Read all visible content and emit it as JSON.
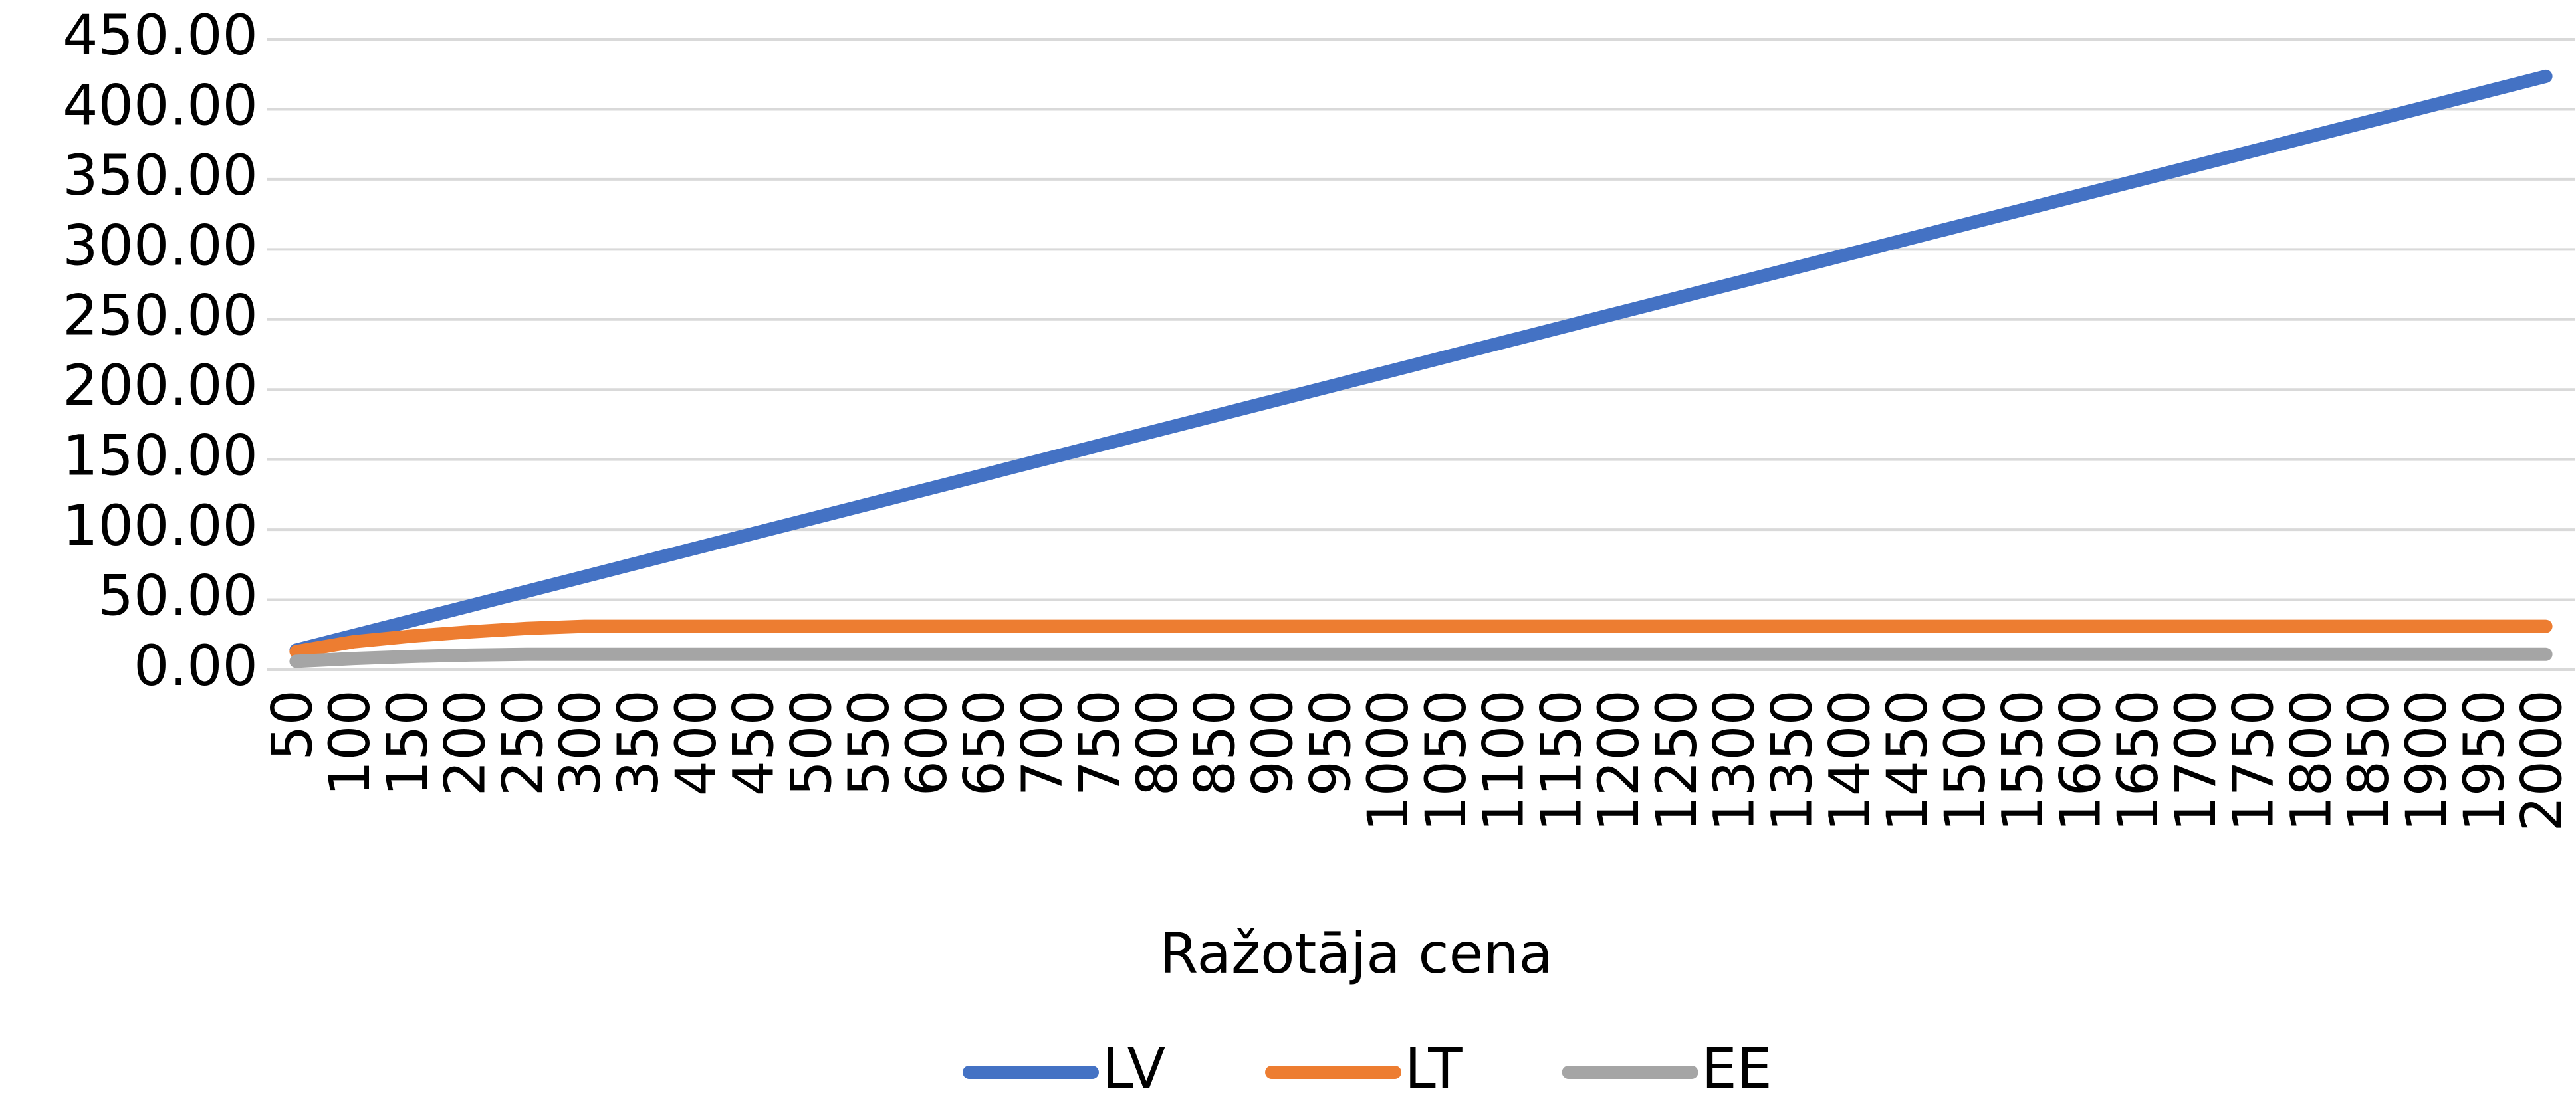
{
  "chart_data": {
    "type": "line",
    "x_label": "Ražotāja cena",
    "categories": [
      "50",
      "100",
      "150",
      "200",
      "250",
      "300",
      "350",
      "400",
      "450",
      "500",
      "550",
      "600",
      "650",
      "700",
      "750",
      "800",
      "850",
      "900",
      "950",
      "1000",
      "1050",
      "1100",
      "1150",
      "1200",
      "1250",
      "1300",
      "1350",
      "1400",
      "1450",
      "1500",
      "1550",
      "1600",
      "1650",
      "1700",
      "1750",
      "1800",
      "1850",
      "1900",
      "1950",
      "2000"
    ],
    "series": [
      {
        "name": "LV",
        "color": "#4472c4",
        "values": [
          14,
          24.5,
          35,
          45.5,
          56,
          66.5,
          77,
          87.5,
          98,
          108.5,
          119,
          129.5,
          140,
          150.5,
          161,
          171.5,
          182,
          192.5,
          203,
          213.5,
          224,
          234.5,
          245,
          255.5,
          266,
          276.5,
          287,
          297.5,
          308,
          318.5,
          329,
          339.5,
          350,
          360.5,
          371,
          381.5,
          392,
          402.5,
          413,
          423.5
        ]
      },
      {
        "name": "LT",
        "color": "#ed7d31",
        "values": [
          13,
          20,
          24,
          27,
          29.5,
          31,
          31,
          31,
          31,
          31,
          31,
          31,
          31,
          31,
          31,
          31,
          31,
          31,
          31,
          31,
          31,
          31,
          31,
          31,
          31,
          31,
          31,
          31,
          31,
          31,
          31,
          31,
          31,
          31,
          31,
          31,
          31,
          31,
          31,
          31
        ]
      },
      {
        "name": "EE",
        "color": "#a5a5a5",
        "values": [
          6,
          8,
          9.5,
          10.5,
          11,
          11,
          11,
          11,
          11,
          11,
          11,
          11,
          11,
          11,
          11,
          11,
          11,
          11,
          11,
          11,
          11,
          11,
          11,
          11,
          11,
          11,
          11,
          11,
          11,
          11,
          11,
          11,
          11,
          11,
          11,
          11,
          11,
          11,
          11,
          11
        ]
      }
    ],
    "ylim": [
      0,
      450
    ],
    "yticks": [
      {
        "value": 0,
        "label": "0.00"
      },
      {
        "value": 50,
        "label": "50.00"
      },
      {
        "value": 100,
        "label": "100.00"
      },
      {
        "value": 150,
        "label": "150.00"
      },
      {
        "value": 200,
        "label": "200.00"
      },
      {
        "value": 250,
        "label": "250.00"
      },
      {
        "value": 300,
        "label": "300.00"
      },
      {
        "value": 350,
        "label": "350.00"
      },
      {
        "value": 400,
        "label": "400.00"
      },
      {
        "value": 450,
        "label": "450.00"
      }
    ],
    "grid": true,
    "legend": "bottom"
  }
}
